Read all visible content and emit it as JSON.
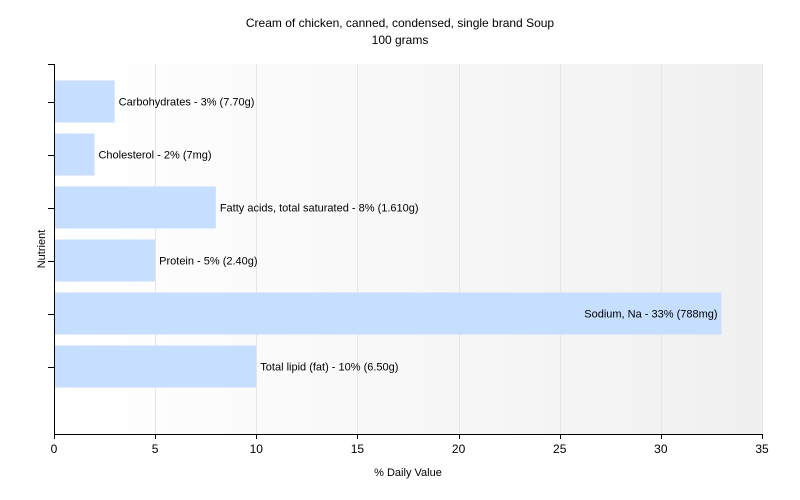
{
  "chart_data": {
    "type": "bar",
    "orientation": "horizontal",
    "title": "Cream of chicken, canned, condensed, single brand Soup",
    "subtitle": "100 grams",
    "xlabel": "% Daily Value",
    "ylabel": "Nutrient",
    "xlim": [
      0,
      35
    ],
    "xticks": [
      0,
      5,
      10,
      15,
      20,
      25,
      30,
      35
    ],
    "grid": true,
    "categories": [
      "Carbohydrates",
      "Cholesterol",
      "Fatty acids, total saturated",
      "Protein",
      "Sodium, Na",
      "Total lipid (fat)"
    ],
    "values": [
      3,
      2,
      8,
      5,
      33,
      10
    ],
    "data_labels": [
      "Carbohydrates - 3% (7.70g)",
      "Cholesterol - 2% (7mg)",
      "Fatty acids, total saturated - 8% (1.610g)",
      "Protein - 5% (2.40g)",
      "Sodium, Na - 33% (788mg)",
      "Total lipid (fat) - 10% (6.50g)"
    ],
    "colors": {
      "bar": "#c6deff",
      "grid": "#e6e6e6",
      "axis": "#000000",
      "plot_bg_start": "#ffffff",
      "plot_bg_end": "#f0f0f0"
    }
  }
}
